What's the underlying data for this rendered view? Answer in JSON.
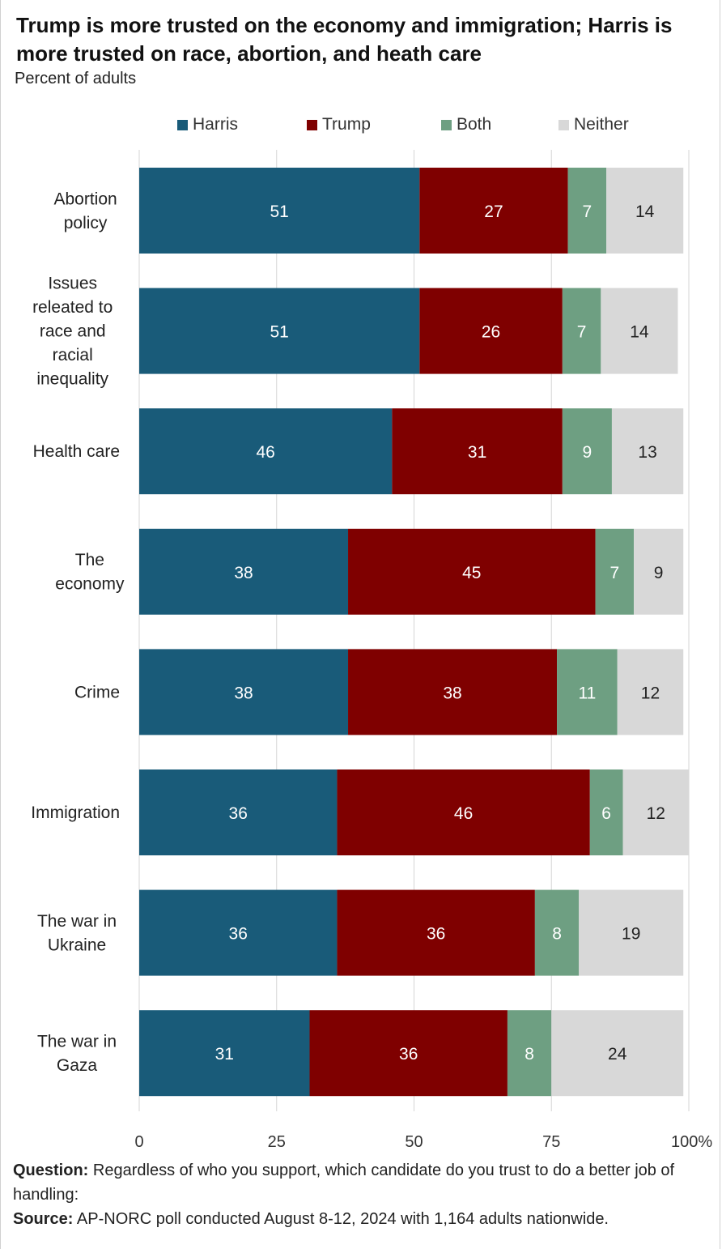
{
  "title": "Trump is more trusted on the economy and immigration; Harris is more trusted on race, abortion, and heath care",
  "subtitle": "Percent of adults",
  "colors": {
    "Harris": "#195b79",
    "Trump": "#7f0000",
    "Both": "#6e9f82",
    "Neither": "#d8d8d8",
    "grid": "#d6d6d6"
  },
  "legend": [
    {
      "name": "Harris"
    },
    {
      "name": "Trump"
    },
    {
      "name": "Both"
    },
    {
      "name": "Neither"
    }
  ],
  "chart_data": {
    "type": "bar",
    "orientation": "horizontal",
    "stacked": true,
    "categories": [
      [
        "Abortion",
        "policy"
      ],
      [
        "Issues",
        "releated to",
        "race and",
        "racial",
        "inequality"
      ],
      [
        "Health care"
      ],
      [
        "The",
        "economy"
      ],
      [
        "Crime"
      ],
      [
        "Immigration"
      ],
      [
        "The war in",
        "Ukraine"
      ],
      [
        "The war in",
        "Gaza"
      ]
    ],
    "series": [
      {
        "name": "Harris",
        "values": [
          51,
          51,
          46,
          38,
          38,
          36,
          36,
          31
        ]
      },
      {
        "name": "Trump",
        "values": [
          27,
          26,
          31,
          45,
          38,
          46,
          36,
          36
        ]
      },
      {
        "name": "Both",
        "values": [
          7,
          7,
          9,
          7,
          11,
          6,
          8,
          8
        ]
      },
      {
        "name": "Neither",
        "values": [
          14,
          14,
          13,
          9,
          12,
          12,
          19,
          24
        ]
      }
    ],
    "xlim": [
      0,
      100
    ],
    "x_ticks": [
      "0",
      "25",
      "50",
      "75",
      "100%"
    ],
    "grid": true,
    "legend_position": "top"
  },
  "footer": {
    "question_label": "Question:",
    "question_text": " Regardless of who you support, which candidate do you trust to do a better job of handling:",
    "source_label": "Source:",
    "source_text": " AP-NORC poll conducted August 8-12, 2024 with 1,164 adults nationwide."
  }
}
